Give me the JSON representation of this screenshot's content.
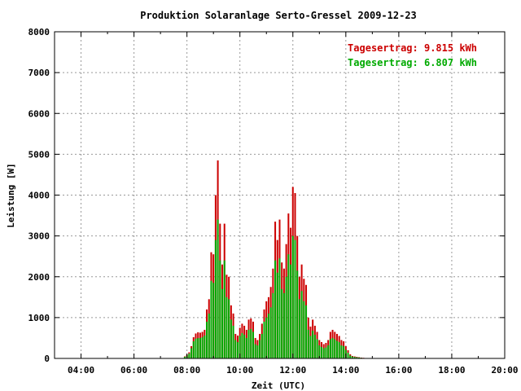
{
  "chart_data": {
    "type": "bar",
    "title": "Produktion Solaranlage Serto-Gressel 2009-12-23",
    "xlabel": "Zeit (UTC)",
    "ylabel": "Leistung [W]",
    "xlim": [
      "03:00",
      "20:00"
    ],
    "ylim": [
      0,
      8000
    ],
    "x_ticks": [
      "04:00",
      "06:00",
      "08:00",
      "10:00",
      "12:00",
      "14:00",
      "16:00",
      "18:00",
      "20:00"
    ],
    "y_ticks": [
      "0",
      "1000",
      "2000",
      "3000",
      "4000",
      "5000",
      "6000",
      "7000",
      "8000"
    ],
    "grid": true,
    "legend_position": "top-right",
    "sample_interval_minutes": 5,
    "x": [
      "07:55",
      "08:00",
      "08:05",
      "08:10",
      "08:15",
      "08:20",
      "08:25",
      "08:30",
      "08:35",
      "08:40",
      "08:45",
      "08:50",
      "08:55",
      "09:00",
      "09:05",
      "09:10",
      "09:15",
      "09:20",
      "09:25",
      "09:30",
      "09:35",
      "09:40",
      "09:45",
      "09:50",
      "09:55",
      "10:00",
      "10:05",
      "10:10",
      "10:15",
      "10:20",
      "10:25",
      "10:30",
      "10:35",
      "10:40",
      "10:45",
      "10:50",
      "10:55",
      "11:00",
      "11:05",
      "11:10",
      "11:15",
      "11:20",
      "11:25",
      "11:30",
      "11:35",
      "11:40",
      "11:45",
      "11:50",
      "11:55",
      "12:00",
      "12:05",
      "12:10",
      "12:15",
      "12:20",
      "12:25",
      "12:30",
      "12:35",
      "12:40",
      "12:45",
      "12:50",
      "12:55",
      "13:00",
      "13:05",
      "13:10",
      "13:15",
      "13:20",
      "13:25",
      "13:30",
      "13:35",
      "13:40",
      "13:45",
      "13:50",
      "13:55",
      "14:00",
      "14:05",
      "14:10",
      "14:15",
      "14:20",
      "14:25",
      "14:30",
      "14:35",
      "14:40",
      "14:45",
      "14:50",
      "14:55",
      "15:00",
      "15:05"
    ],
    "series": [
      {
        "name": "Tagesertrag: 9.815 kWh",
        "color": "#cc0000",
        "values": [
          50,
          90,
          150,
          300,
          520,
          610,
          640,
          630,
          650,
          700,
          1200,
          1450,
          2600,
          2550,
          4000,
          4850,
          3300,
          2300,
          3300,
          2050,
          2000,
          1300,
          1100,
          600,
          560,
          750,
          850,
          800,
          700,
          950,
          980,
          900,
          500,
          450,
          600,
          850,
          1200,
          1400,
          1500,
          1750,
          2200,
          3350,
          2900,
          3400,
          2350,
          2200,
          2800,
          3550,
          3200,
          4200,
          4050,
          3000,
          2000,
          2300,
          1950,
          1800,
          1000,
          780,
          950,
          800,
          650,
          450,
          400,
          350,
          380,
          450,
          650,
          700,
          650,
          600,
          550,
          450,
          420,
          300,
          200,
          100,
          60,
          50,
          40,
          30,
          20,
          15,
          10,
          8,
          5,
          3,
          2
        ],
        "values_note": "approximate, read from chart"
      },
      {
        "name": "Tagesertrag: 6.807 kWh",
        "color": "#00aa00",
        "values": [
          40,
          70,
          120,
          250,
          420,
          480,
          500,
          500,
          520,
          560,
          900,
          1100,
          1900,
          1850,
          2900,
          3400,
          2400,
          1700,
          2400,
          1500,
          1450,
          950,
          800,
          450,
          400,
          550,
          620,
          580,
          500,
          700,
          720,
          650,
          350,
          320,
          450,
          600,
          900,
          1000,
          1100,
          1250,
          1600,
          2400,
          2100,
          2450,
          1700,
          1600,
          2000,
          2550,
          2300,
          3000,
          2900,
          2150,
          1450,
          1650,
          1400,
          1300,
          700,
          550,
          680,
          580,
          470,
          320,
          280,
          250,
          270,
          320,
          470,
          500,
          470,
          430,
          400,
          320,
          300,
          210,
          140,
          70,
          45,
          35,
          28,
          22,
          15,
          10,
          7,
          5,
          3,
          2,
          1
        ]
      }
    ]
  }
}
